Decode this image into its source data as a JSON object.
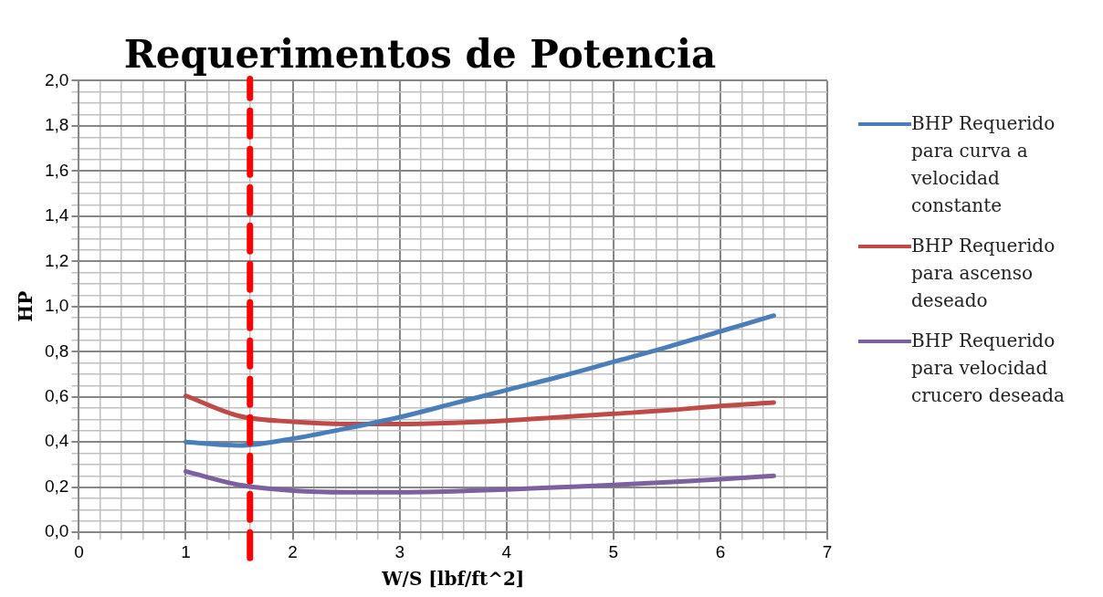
{
  "chart_data": {
    "type": "line",
    "title": "Requerimentos de Potencia",
    "xlabel": "W/S [lbf/ft^2]",
    "ylabel": "HP",
    "x": [
      1,
      1.5,
      2,
      2.5,
      3,
      3.5,
      4,
      4.5,
      5,
      5.5,
      6,
      6.5
    ],
    "series": [
      {
        "name": "BHP Requerido para curva a velocidad constante",
        "color": "#4a7ebb",
        "values": [
          0.4,
          0.385,
          0.415,
          0.46,
          0.51,
          0.57,
          0.63,
          0.69,
          0.755,
          0.82,
          0.89,
          0.96
        ]
      },
      {
        "name": "BHP Requerido para ascenso deseado",
        "color": "#be4b48",
        "values": [
          0.605,
          0.515,
          0.49,
          0.48,
          0.48,
          0.485,
          0.495,
          0.51,
          0.525,
          0.54,
          0.56,
          0.575
        ]
      },
      {
        "name": "BHP Requerido para velocidad crucero deseada",
        "color": "#7d60a0",
        "values": [
          0.27,
          0.21,
          0.185,
          0.178,
          0.178,
          0.182,
          0.19,
          0.2,
          0.21,
          0.222,
          0.235,
          0.25
        ]
      }
    ],
    "xlim": [
      0,
      7
    ],
    "xticks": [
      0,
      {
        "value": 0.2,
        "label": null
      },
      {
        "value": 0.4,
        "label": null
      },
      {
        "value": 0.6,
        "label": null
      },
      {
        "value": 0.8,
        "label": null
      },
      1,
      {
        "value": 1.2,
        "label": null
      },
      {
        "value": 1.4,
        "label": null
      },
      {
        "value": 1.6,
        "label": null
      },
      {
        "value": 1.8,
        "label": null
      },
      2,
      {
        "value": 2.2,
        "label": null
      },
      {
        "value": 2.4,
        "label": null
      },
      {
        "value": 2.6,
        "label": null
      },
      {
        "value": 2.8,
        "label": null
      },
      3,
      {
        "value": 3.2,
        "label": null
      },
      {
        "value": 3.4,
        "label": null
      },
      {
        "value": 3.6,
        "label": null
      },
      {
        "value": 3.8,
        "label": null
      },
      4,
      {
        "value": 4.2,
        "label": null
      },
      {
        "value": 4.4,
        "label": null
      },
      {
        "value": 4.6,
        "label": null
      },
      {
        "value": 4.8,
        "label": null
      },
      5,
      {
        "value": 5.2,
        "label": null
      },
      {
        "value": 5.4,
        "label": null
      },
      {
        "value": 5.6,
        "label": null
      },
      {
        "value": 5.8,
        "label": null
      },
      6,
      {
        "value": 6.2,
        "label": null
      },
      {
        "value": 6.4,
        "label": null
      },
      {
        "value": 6.6,
        "label": null
      },
      {
        "value": 6.8,
        "label": null
      },
      7
    ],
    "ylim": [
      0,
      2
    ],
    "yticks": [
      {
        "value": 0,
        "label": "0,0"
      },
      {
        "value": 0.05,
        "label": null
      },
      {
        "value": 0.1,
        "label": null
      },
      {
        "value": 0.15,
        "label": null
      },
      {
        "value": 0.2,
        "label": "0,2"
      },
      {
        "value": 0.25,
        "label": null
      },
      {
        "value": 0.3,
        "label": null
      },
      {
        "value": 0.35,
        "label": null
      },
      {
        "value": 0.4,
        "label": "0,4"
      },
      {
        "value": 0.45,
        "label": null
      },
      {
        "value": 0.5,
        "label": null
      },
      {
        "value": 0.55,
        "label": null
      },
      {
        "value": 0.6,
        "label": "0,6"
      },
      {
        "value": 0.65,
        "label": null
      },
      {
        "value": 0.7,
        "label": null
      },
      {
        "value": 0.75,
        "label": null
      },
      {
        "value": 0.8,
        "label": "0,8"
      },
      {
        "value": 0.85,
        "label": null
      },
      {
        "value": 0.9,
        "label": null
      },
      {
        "value": 0.95,
        "label": null
      },
      {
        "value": 1,
        "label": "1,0"
      },
      {
        "value": 1.05,
        "label": null
      },
      {
        "value": 1.1,
        "label": null
      },
      {
        "value": 1.15,
        "label": null
      },
      {
        "value": 1.2,
        "label": "1,2"
      },
      {
        "value": 1.25,
        "label": null
      },
      {
        "value": 1.3,
        "label": null
      },
      {
        "value": 1.35,
        "label": null
      },
      {
        "value": 1.4,
        "label": "1,4"
      },
      {
        "value": 1.45,
        "label": null
      },
      {
        "value": 1.5,
        "label": null
      },
      {
        "value": 1.55,
        "label": null
      },
      {
        "value": 1.6,
        "label": "1,6"
      },
      {
        "value": 1.65,
        "label": null
      },
      {
        "value": 1.7,
        "label": null
      },
      {
        "value": 1.75,
        "label": null
      },
      {
        "value": 1.8,
        "label": "1,8"
      },
      {
        "value": 1.85,
        "label": null
      },
      {
        "value": 1.9,
        "label": null
      },
      {
        "value": 1.95,
        "label": null
      },
      {
        "value": 2,
        "label": "2,0"
      }
    ],
    "ref_lines": [
      {
        "axis": "x",
        "value": 1.6,
        "color": "#ff0000",
        "line_style": "dashed"
      }
    ],
    "grid": true,
    "legend": "right",
    "marker": "none",
    "line_style": "solid"
  }
}
